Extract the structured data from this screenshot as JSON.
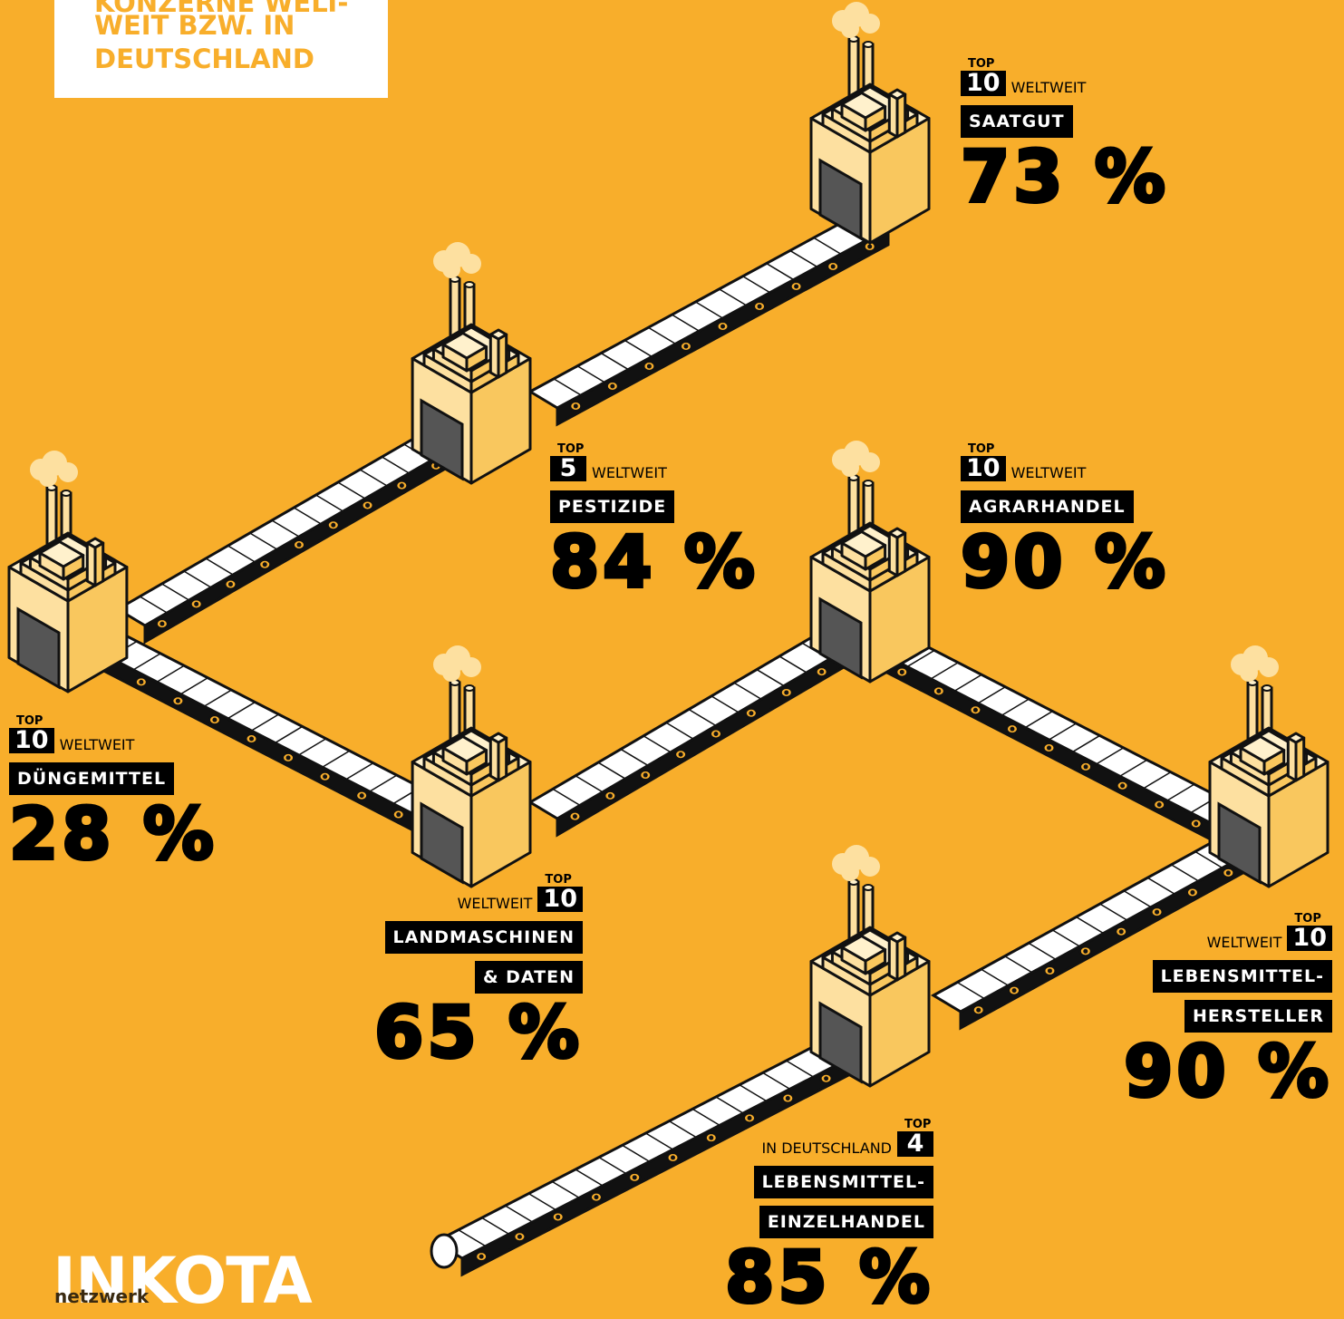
{
  "header": {
    "lines": [
      "KONZERNE WELT-",
      "WEIT BZW. IN",
      "DEUTSCHLAND"
    ]
  },
  "logo": {
    "name": "INKOTA",
    "sub": "netzwerk"
  },
  "items": [
    {
      "top": "TOP",
      "rank": "10",
      "scope": "WELTWEIT",
      "sector": [
        "SAATGUT"
      ],
      "share": "73 %"
    },
    {
      "top": "TOP",
      "rank": "5",
      "scope": "WELTWEIT",
      "sector": [
        "PESTIZIDE"
      ],
      "share": "84 %"
    },
    {
      "top": "TOP",
      "rank": "10",
      "scope": "WELTWEIT",
      "sector": [
        "AGRARHANDEL"
      ],
      "share": "90 %"
    },
    {
      "top": "TOP",
      "rank": "10",
      "scope": "WELTWEIT",
      "sector": [
        "DÜNGEMITTEL"
      ],
      "share": "28 %"
    },
    {
      "top": "TOP",
      "rank": "10",
      "scope": "WELTWEIT",
      "sector": [
        "LANDMASCHINEN",
        "& DATEN"
      ],
      "share": "65 %"
    },
    {
      "top": "TOP",
      "rank": "10",
      "scope": "WELTWEIT",
      "sector": [
        "LEBENSMITTEL-",
        "HERSTELLER"
      ],
      "share": "90 %"
    },
    {
      "top": "TOP",
      "rank": "4",
      "scope": "IN DEUTSCHLAND",
      "sector": [
        "LEBENSMITTEL-",
        "EINZELHANDEL"
      ],
      "share": "85 %"
    }
  ]
}
